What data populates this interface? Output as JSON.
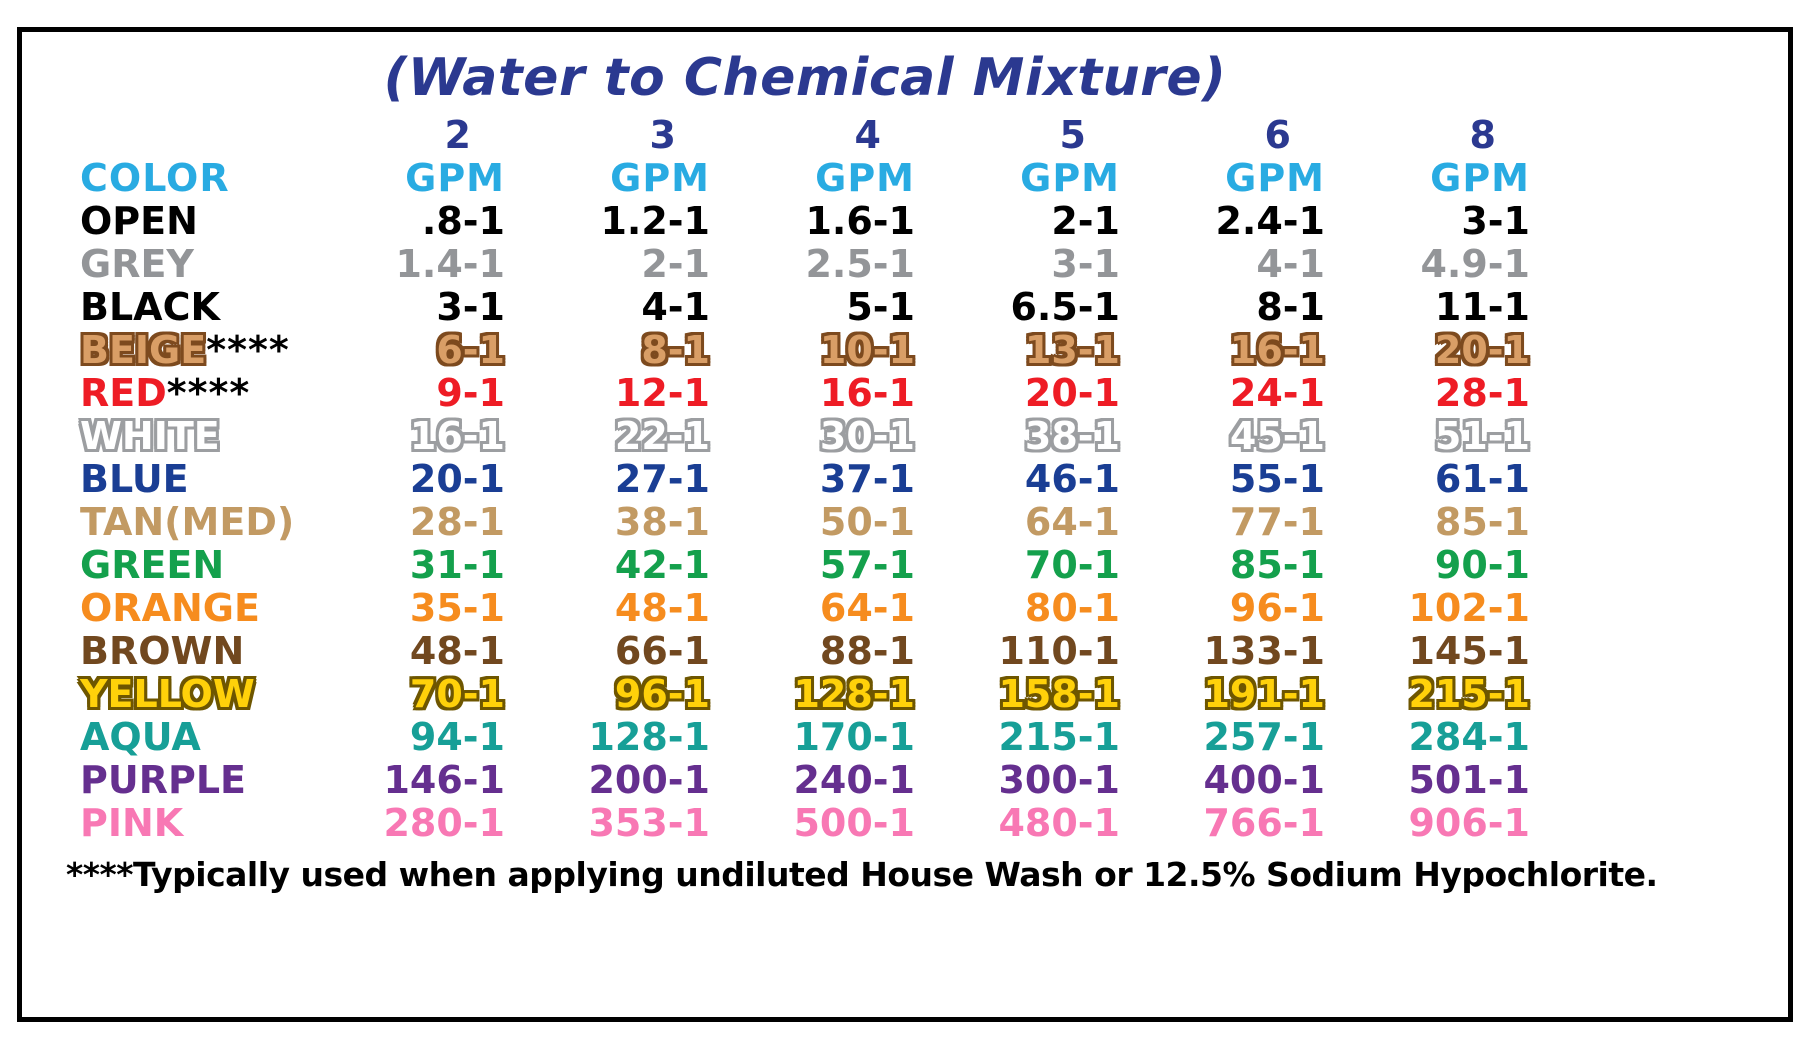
{
  "colors": {
    "title_blue": "#2b3990",
    "gpm_number_blue": "#2b3990",
    "header_cyan": "#29abe2",
    "border": "#000000",
    "footnote_black": "#000000"
  },
  "chart_data": {
    "type": "table",
    "title": "(Water to Chemical Mixture)",
    "color_header": "COLOR",
    "gpm_unit": "GPM",
    "gpm_numbers": [
      "2",
      "3",
      "4",
      "5",
      "6",
      "8"
    ],
    "columns": [
      "COLOR",
      "2 GPM",
      "3 GPM",
      "4 GPM",
      "5 GPM",
      "6 GPM",
      "8 GPM"
    ],
    "rows": [
      {
        "name": "OPEN",
        "suffix": "",
        "fill": "#000000",
        "stroke": null,
        "values": [
          ".8-1",
          "1.2-1",
          "1.6-1",
          "2-1",
          "2.4-1",
          "3-1"
        ]
      },
      {
        "name": "GREY",
        "suffix": "",
        "fill": "#939598",
        "stroke": null,
        "values": [
          "1.4-1",
          "2-1",
          "2.5-1",
          "3-1",
          "4-1",
          "4.9-1"
        ]
      },
      {
        "name": "BLACK",
        "suffix": "",
        "fill": "#000000",
        "stroke": null,
        "values": [
          "3-1",
          "4-1",
          "5-1",
          "6.5-1",
          "8-1",
          "11-1"
        ]
      },
      {
        "name": "BEIGE",
        "suffix": "****",
        "fill": "#d99e66",
        "stroke": "#7d4a1e",
        "values": [
          "6-1",
          "8-1",
          "10-1",
          "13-1",
          "16-1",
          "20-1"
        ]
      },
      {
        "name": "RED",
        "suffix": "****",
        "fill": "#ee1c25",
        "stroke": null,
        "values": [
          "9-1",
          "12-1",
          "16-1",
          "20-1",
          "24-1",
          "28-1"
        ]
      },
      {
        "name": "WHITE",
        "suffix": "",
        "fill": "#ffffff",
        "stroke": "#9c9ea1",
        "values": [
          "16-1",
          "22-1",
          "30-1",
          "38-1",
          "45-1",
          "51-1"
        ]
      },
      {
        "name": "BLUE",
        "suffix": "",
        "fill": "#1a3e94",
        "stroke": null,
        "values": [
          "20-1",
          "27-1",
          "37-1",
          "46-1",
          "55-1",
          "61-1"
        ]
      },
      {
        "name": "TAN(MED)",
        "suffix": "",
        "fill": "#c29a63",
        "stroke": null,
        "values": [
          "28-1",
          "38-1",
          "50-1",
          "64-1",
          "77-1",
          "85-1"
        ]
      },
      {
        "name": "GREEN",
        "suffix": "",
        "fill": "#14a04c",
        "stroke": null,
        "values": [
          "31-1",
          "42-1",
          "57-1",
          "70-1",
          "85-1",
          "90-1"
        ]
      },
      {
        "name": "ORANGE",
        "suffix": "",
        "fill": "#f68c1e",
        "stroke": null,
        "values": [
          "35-1",
          "48-1",
          "64-1",
          "80-1",
          "96-1",
          "102-1"
        ]
      },
      {
        "name": "BROWN",
        "suffix": "",
        "fill": "#71481f",
        "stroke": null,
        "values": [
          "48-1",
          "66-1",
          "88-1",
          "110-1",
          "133-1",
          "145-1"
        ]
      },
      {
        "name": "YELLOW",
        "suffix": "",
        "fill": "#ffd10a",
        "stroke": "#6e5600",
        "values": [
          "70-1",
          "96-1",
          "128-1",
          "158-1",
          "191-1",
          "215-1"
        ]
      },
      {
        "name": "AQUA",
        "suffix": "",
        "fill": "#179f97",
        "stroke": null,
        "values": [
          "94-1",
          "128-1",
          "170-1",
          "215-1",
          "257-1",
          "284-1"
        ]
      },
      {
        "name": "PURPLE",
        "suffix": "",
        "fill": "#652f8f",
        "stroke": null,
        "values": [
          "146-1",
          "200-1",
          "240-1",
          "300-1",
          "400-1",
          "501-1"
        ]
      },
      {
        "name": "PINK",
        "suffix": "",
        "fill": "#f878b4",
        "stroke": null,
        "values": [
          "280-1",
          "353-1",
          "500-1",
          "480-1",
          "766-1",
          "906-1"
        ]
      }
    ],
    "footnote": "****Typically used when applying undiluted House Wash or 12.5% Sodium Hypochlorite."
  }
}
